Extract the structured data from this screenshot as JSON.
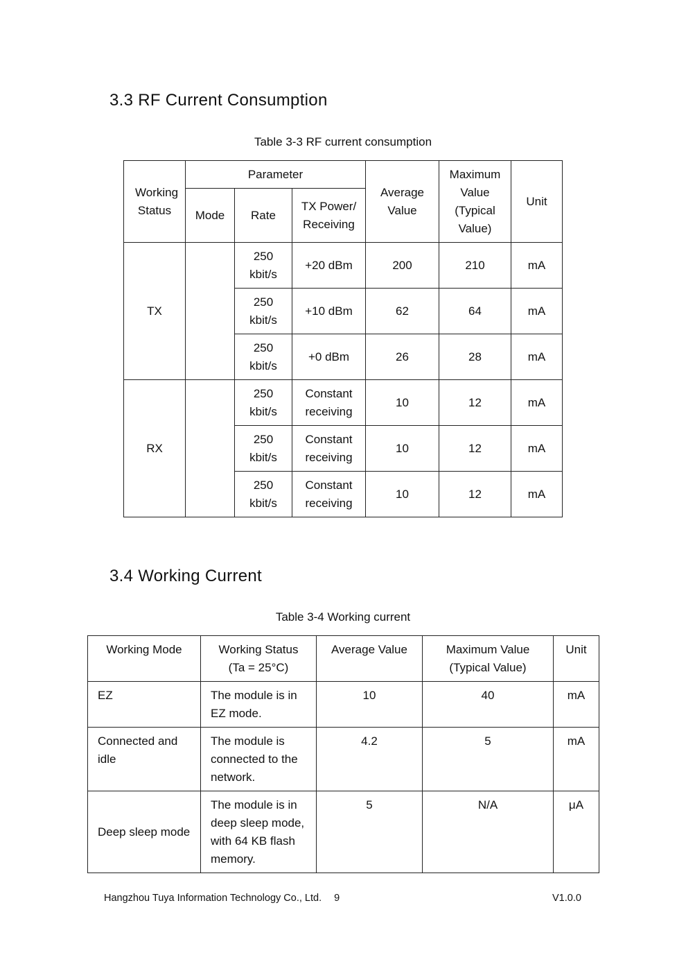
{
  "section1": {
    "heading": "3.3 RF Current Consumption",
    "caption": "Table 3-3 RF current consumption",
    "headers": {
      "working_status": "Working Status",
      "parameter": "Parameter",
      "mode": "Mode",
      "rate": "Rate",
      "tx_power": "TX Power/ Receiving",
      "average": "Average Value",
      "maximum": "Maximum Value (Typical Value)",
      "unit": "Unit"
    },
    "groups": [
      {
        "status": "TX",
        "mode": "",
        "rows": [
          {
            "rate": "250 kbit/s",
            "power": "+20 dBm",
            "avg": "200",
            "max": "210",
            "unit": "mA"
          },
          {
            "rate": "250 kbit/s",
            "power": "+10 dBm",
            "avg": "62",
            "max": "64",
            "unit": "mA"
          },
          {
            "rate": "250 kbit/s",
            "power": "+0 dBm",
            "avg": "26",
            "max": "28",
            "unit": "mA"
          }
        ]
      },
      {
        "status": "RX",
        "mode": "",
        "rows": [
          {
            "rate": "250 kbit/s",
            "power": "Constant receiving",
            "avg": "10",
            "max": "12",
            "unit": "mA"
          },
          {
            "rate": "250 kbit/s",
            "power": "Constant receiving",
            "avg": "10",
            "max": "12",
            "unit": "mA"
          },
          {
            "rate": "250 kbit/s",
            "power": "Constant receiving",
            "avg": "10",
            "max": "12",
            "unit": "mA"
          }
        ]
      }
    ]
  },
  "section2": {
    "heading": "3.4 Working Current",
    "caption": "Table 3-4 Working current",
    "headers": [
      "Working Mode",
      "Working Status (Ta = 25°C)",
      "Average Value",
      "Maximum Value (Typical Value)",
      "Unit"
    ],
    "rows": [
      [
        "EZ",
        "The module is in EZ mode.",
        "10",
        "40",
        "mA"
      ],
      [
        "Connected and idle",
        "The module is connected to the network.",
        "4.2",
        "5",
        "mA"
      ],
      [
        "Deep sleep mode",
        "The module is in deep sleep mode, with 64 KB flash memory.",
        "5",
        "N/A",
        "μA"
      ]
    ]
  },
  "footer": {
    "company": "Hangzhou Tuya Information Technology Co., Ltd.",
    "page": "9",
    "version": "V1.0.0"
  }
}
